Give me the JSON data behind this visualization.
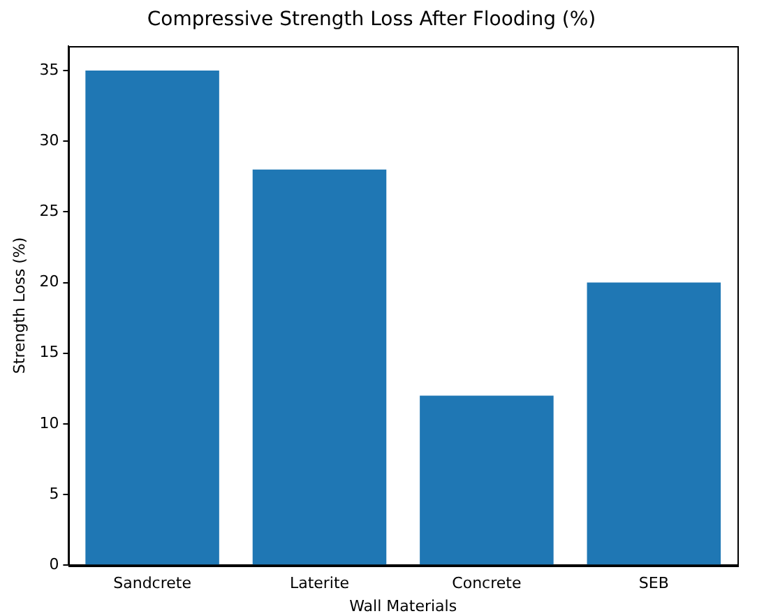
{
  "chart_data": {
    "type": "bar",
    "title": "Compressive Strength Loss After Flooding (%)",
    "xlabel": "Wall Materials",
    "ylabel": "Strength Loss (%)",
    "categories": [
      "Sandcrete",
      "Laterite",
      "Concrete",
      "SEB"
    ],
    "values": [
      35,
      28,
      12,
      20
    ],
    "color": "#1f77b4",
    "ylim": [
      0,
      36.75
    ],
    "yticks": [
      0,
      5,
      10,
      15,
      20,
      25,
      30,
      35
    ],
    "grid": false,
    "legend": false
  }
}
